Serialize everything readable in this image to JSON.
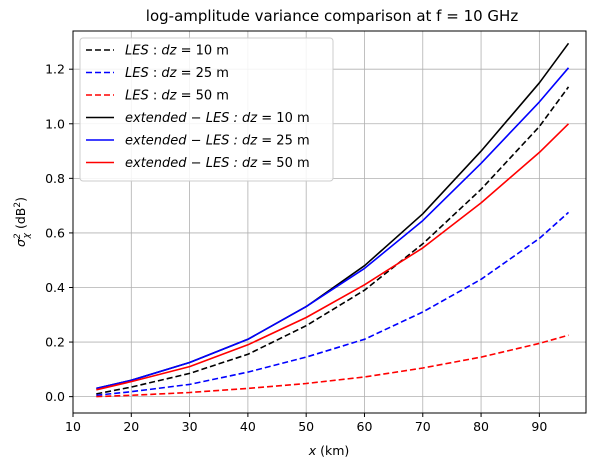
{
  "chart_data": {
    "type": "line",
    "title": "log-amplitude variance comparison at f = 10 GHz",
    "xlabel_var": "x",
    "xlabel_unit": " (km)",
    "ylabel_var": "σ",
    "ylabel_sup": "2",
    "ylabel_sub": "χ",
    "ylabel_unit": " (dB",
    "ylabel_unit_sup": "2",
    "ylabel_close": ")",
    "xlim": [
      10,
      98
    ],
    "ylim": [
      -0.06,
      1.34
    ],
    "xticks": [
      10,
      20,
      30,
      40,
      50,
      60,
      70,
      80,
      90
    ],
    "yticks": [
      0.0,
      0.2,
      0.4,
      0.6,
      0.8,
      1.0,
      1.2
    ],
    "ytick_labels": [
      "0.0",
      "0.2",
      "0.4",
      "0.6",
      "0.8",
      "1.0",
      "1.2"
    ],
    "grid": true,
    "legend_position": "top-left",
    "x": [
      14,
      20,
      30,
      40,
      50,
      60,
      70,
      80,
      90,
      95
    ],
    "series": [
      {
        "name_var": "LES",
        "name_mid": " : ",
        "name_var2": "dz",
        "name_rest": " = 10 m",
        "color": "#000000",
        "dash": "dashed",
        "values": [
          0.01,
          0.035,
          0.085,
          0.155,
          0.26,
          0.39,
          0.56,
          0.76,
          0.99,
          1.135
        ]
      },
      {
        "name_var": "LES",
        "name_mid": " : ",
        "name_var2": "dz",
        "name_rest": " = 25 m",
        "color": "#0000ff",
        "dash": "dashed",
        "values": [
          0.005,
          0.018,
          0.045,
          0.09,
          0.145,
          0.21,
          0.31,
          0.43,
          0.58,
          0.675
        ]
      },
      {
        "name_var": "LES",
        "name_mid": " : ",
        "name_var2": "dz",
        "name_rest": " = 50 m",
        "color": "#ff0000",
        "dash": "dashed",
        "values": [
          0.0,
          0.005,
          0.015,
          0.03,
          0.048,
          0.072,
          0.105,
          0.145,
          0.195,
          0.225
        ]
      },
      {
        "name_var": "extended",
        "name_mid": " − ",
        "name_var2": "LES : dz",
        "name_rest": " = 10 m",
        "color": "#000000",
        "dash": "solid",
        "values": [
          0.03,
          0.06,
          0.125,
          0.21,
          0.33,
          0.48,
          0.67,
          0.9,
          1.15,
          1.295
        ]
      },
      {
        "name_var": "extended",
        "name_mid": " − ",
        "name_var2": "LES : dz",
        "name_rest": " = 25 m",
        "color": "#0000ff",
        "dash": "solid",
        "values": [
          0.03,
          0.06,
          0.125,
          0.21,
          0.33,
          0.47,
          0.645,
          0.855,
          1.08,
          1.205
        ]
      },
      {
        "name_var": "extended",
        "name_mid": " − ",
        "name_var2": "LES : dz",
        "name_rest": " = 50 m",
        "color": "#ff0000",
        "dash": "solid",
        "values": [
          0.025,
          0.055,
          0.11,
          0.19,
          0.29,
          0.41,
          0.545,
          0.71,
          0.895,
          1.0
        ]
      }
    ]
  }
}
